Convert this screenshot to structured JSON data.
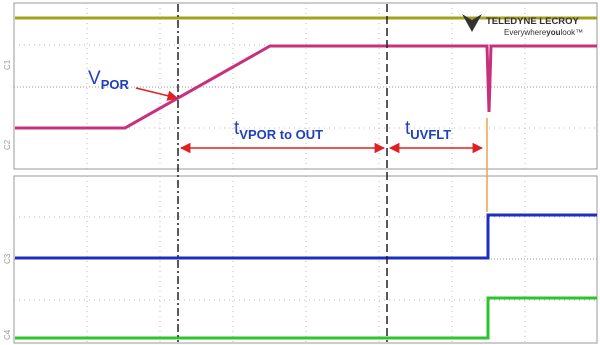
{
  "logo": {
    "brand": "TELEDYNE LECROY",
    "tagline_before": "Everywhere",
    "tagline_bold": "you",
    "tagline_after": "look™"
  },
  "channels": [
    "C1",
    "C2",
    "C3",
    "C4"
  ],
  "annotations": [
    {
      "symbol": "V",
      "subscript": "POR"
    },
    {
      "symbol": "t",
      "subscript": "VPOR to OUT"
    },
    {
      "symbol": "t",
      "subscript": "UVFLT"
    }
  ]
}
